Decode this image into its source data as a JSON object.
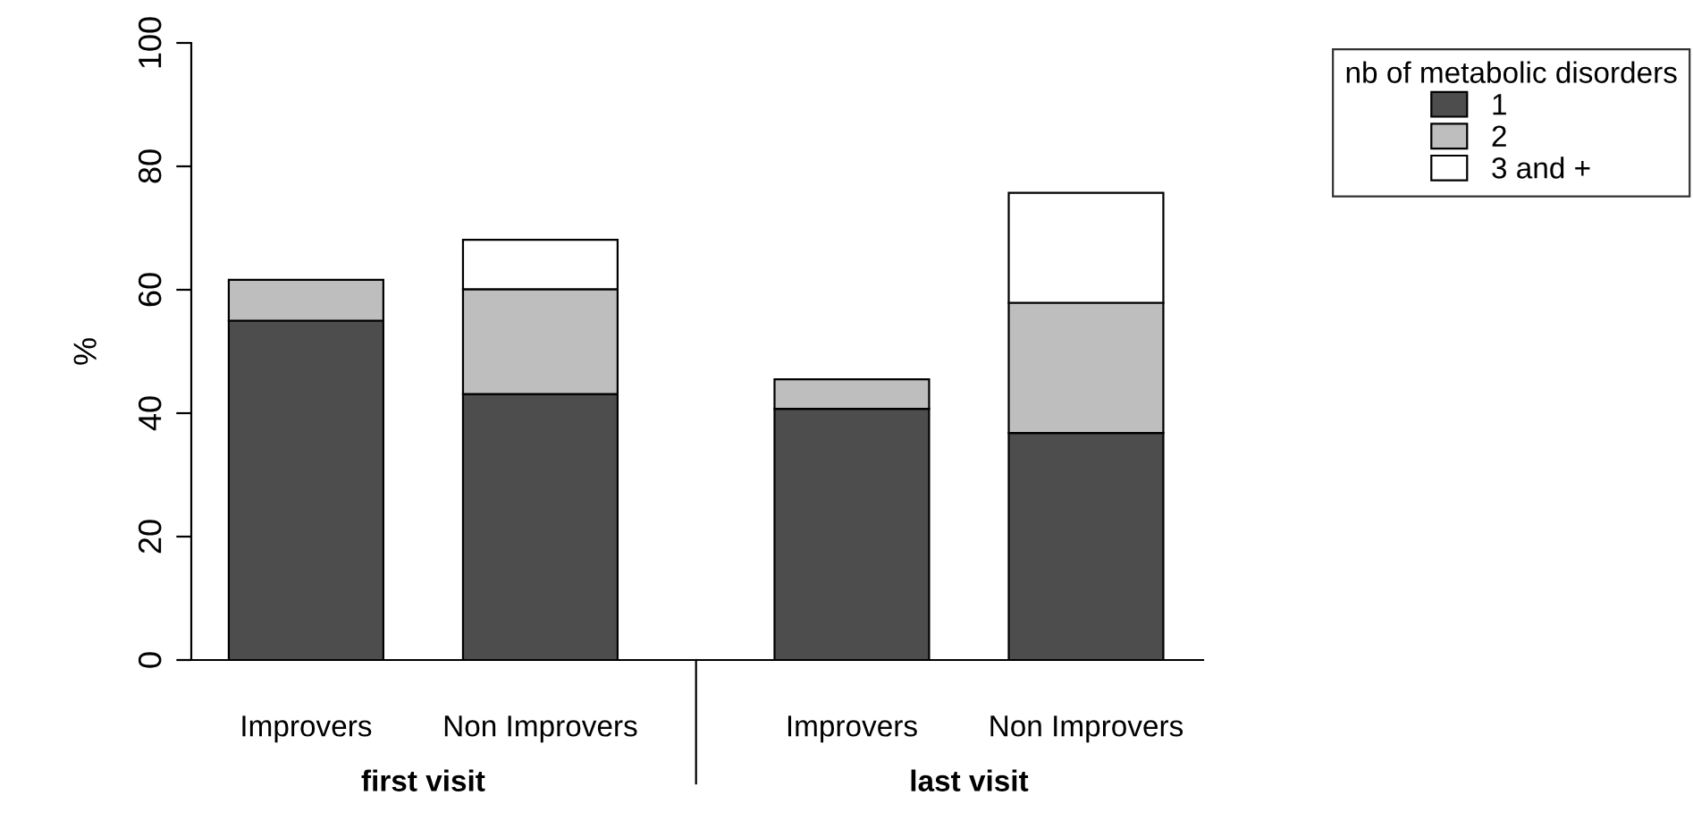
{
  "chart_data": {
    "type": "bar",
    "stacked": true,
    "ylabel": "%",
    "legend_title": "nb of metabolic disorders",
    "legend": "top right",
    "categories": [
      "Improvers",
      "Non Improvers",
      "Improvers",
      "Non Improvers"
    ],
    "series": [
      {
        "name": "1",
        "color": "#4d4d4d",
        "values": [
          55,
          43.1,
          40.7,
          36.8
        ]
      },
      {
        "name": "2",
        "color": "#bebebe",
        "values": [
          6.6,
          17,
          4.8,
          21.1
        ]
      },
      {
        "name": "3 and +",
        "color": "#ffffff",
        "values": [
          null,
          8,
          null,
          17.8
        ]
      }
    ],
    "ylim": [
      0,
      100
    ],
    "yticks": [
      0,
      20,
      40,
      60,
      80,
      100
    ],
    "annotations": [
      "first visit",
      "last visit"
    ]
  }
}
